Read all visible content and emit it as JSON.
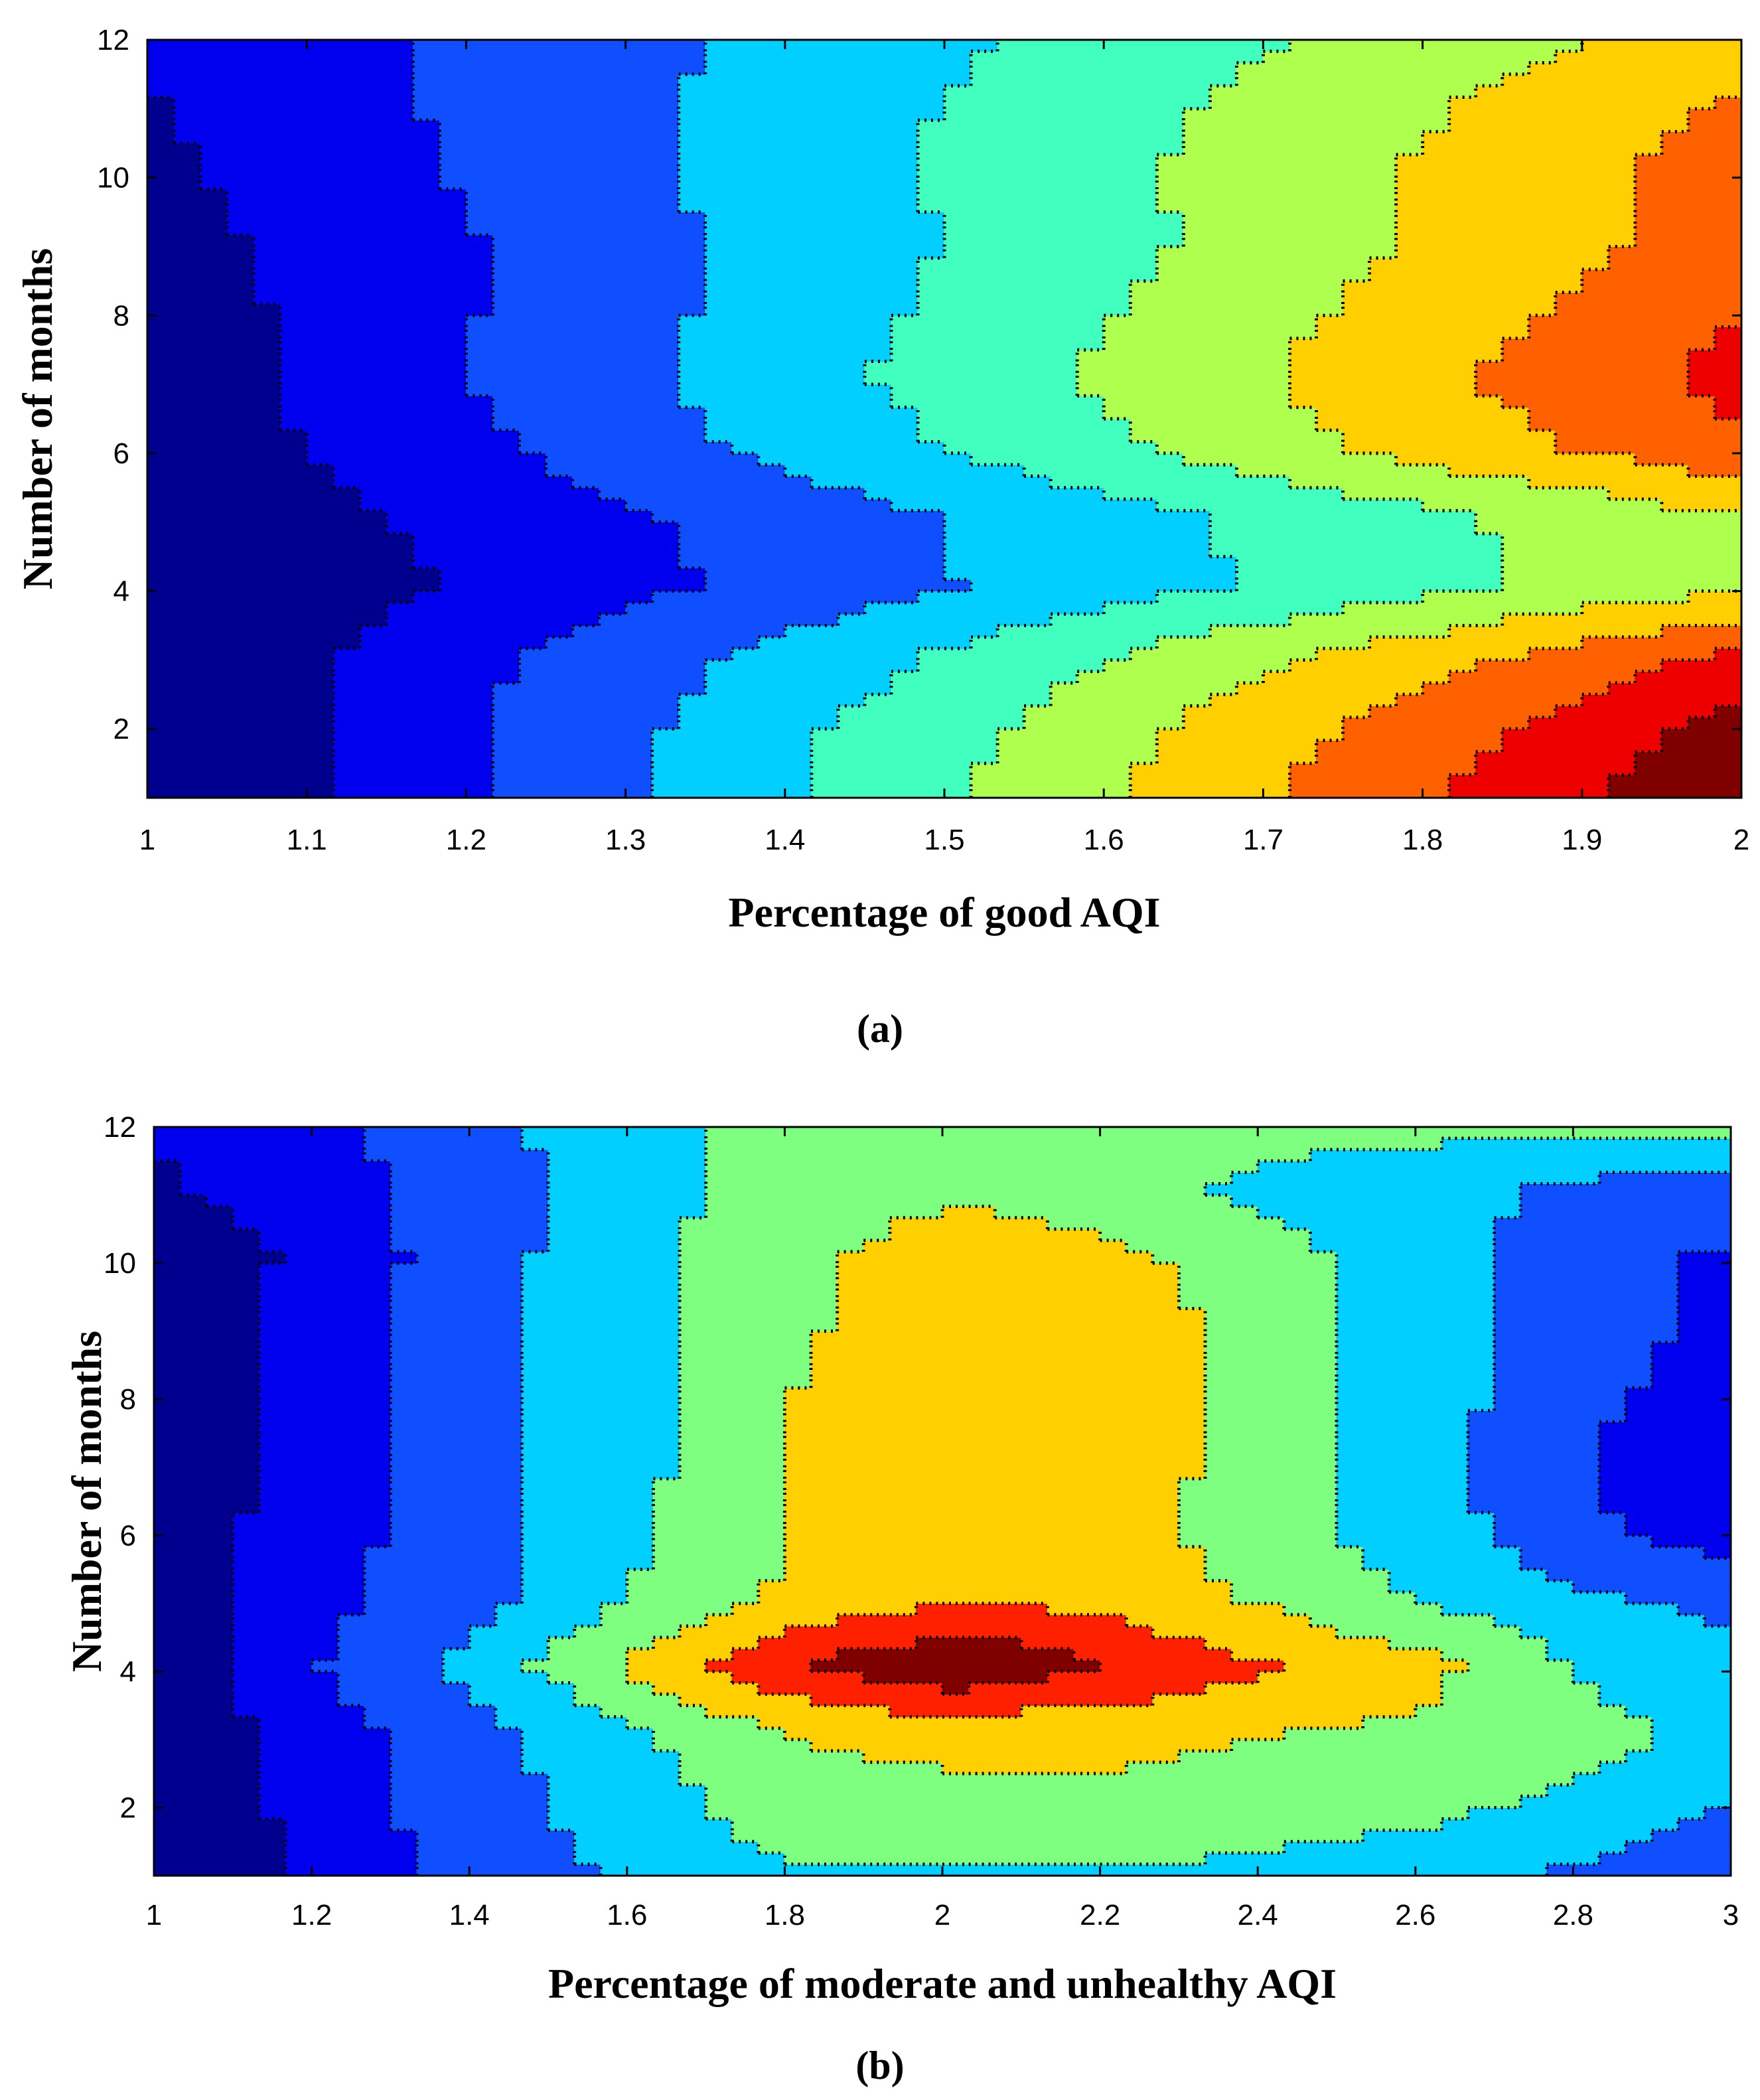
{
  "chart_data": [
    {
      "type": "contour",
      "caption": "(a)",
      "xlabel": "Percentage of good AQI",
      "ylabel": "Number of months",
      "xlim": [
        1,
        2
      ],
      "ylim": [
        1,
        12
      ],
      "xticks": [
        1,
        1.1,
        1.2,
        1.3,
        1.4,
        1.5,
        1.6,
        1.7,
        1.8,
        1.9,
        2
      ],
      "yticks": [
        2,
        4,
        6,
        8,
        10,
        12
      ],
      "colormap": [
        "#00008F",
        "#0000EF",
        "#0F4FFF",
        "#00CFFF",
        "#40FFBF",
        "#AFFF4F",
        "#FFCF00",
        "#FF6000",
        "#EF0000",
        "#800000"
      ],
      "grid": {
        "x": [
          1,
          1.1,
          1.2,
          1.3,
          1.4,
          1.5,
          1.6,
          1.7,
          1.8,
          1.9,
          2
        ],
        "y": [
          1,
          2,
          3,
          4,
          5,
          6,
          7,
          8,
          9,
          10,
          11,
          12
        ],
        "z": [
          [
            0.0,
            1.2,
            2.4,
            3.6,
            4.8,
            6.0,
            7.2,
            8.4,
            9.6,
            10.8,
            12.0
          ],
          [
            0.2,
            1.2,
            2.4,
            3.4,
            4.6,
            5.6,
            6.8,
            7.9,
            9.0,
            10.1,
            11.3
          ],
          [
            0.2,
            1.1,
            2.1,
            3.1,
            4.0,
            5.0,
            6.0,
            7.0,
            7.9,
            8.9,
            9.9
          ],
          [
            0.0,
            0.7,
            1.4,
            2.1,
            2.9,
            3.6,
            4.3,
            5.0,
            5.7,
            6.4,
            7.1
          ],
          [
            0.2,
            0.9,
            1.6,
            2.3,
            3.0,
            3.7,
            4.4,
            5.1,
            5.8,
            6.5,
            7.2
          ],
          [
            0.4,
            1.3,
            2.2,
            3.1,
            4.0,
            4.9,
            5.8,
            6.8,
            7.7,
            8.6,
            9.5
          ],
          [
            0.6,
            1.5,
            2.5,
            3.4,
            4.4,
            5.3,
            6.3,
            7.2,
            8.2,
            9.1,
            10.1
          ],
          [
            0.6,
            1.5,
            2.4,
            3.3,
            4.2,
            5.1,
            6.0,
            6.9,
            7.8,
            8.7,
            9.6
          ],
          [
            0.8,
            1.6,
            2.4,
            3.3,
            4.1,
            4.9,
            5.7,
            6.5,
            7.4,
            8.2,
            9.0
          ],
          [
            1.0,
            1.8,
            2.6,
            3.4,
            4.2,
            5.0,
            5.8,
            6.6,
            7.4,
            8.2,
            9.0
          ],
          [
            1.2,
            1.9,
            2.7,
            3.4,
            4.2,
            4.9,
            5.6,
            6.4,
            7.1,
            7.9,
            8.6
          ],
          [
            1.4,
            2.0,
            2.7,
            3.3,
            4.0,
            4.6,
            5.2,
            5.9,
            6.5,
            7.2,
            7.8
          ]
        ]
      }
    },
    {
      "type": "contour",
      "caption": "(b)",
      "xlabel": "Percentage of moderate and unhealthy AQI",
      "ylabel": "Number of months",
      "xlim": [
        1,
        3
      ],
      "ylim": [
        1,
        12
      ],
      "xticks": [
        1,
        1.2,
        1.4,
        1.6,
        1.8,
        2,
        2.2,
        2.4,
        2.6,
        2.8,
        3
      ],
      "yticks": [
        2,
        4,
        6,
        8,
        10,
        12
      ],
      "colormap": [
        "#00008F",
        "#0000EF",
        "#0F4FFF",
        "#00CFFF",
        "#7FFF7F",
        "#FFCF00",
        "#FF2000",
        "#800000"
      ],
      "grid": {
        "x": [
          1,
          1.2,
          1.4,
          1.6,
          1.8,
          2,
          2.2,
          2.4,
          2.6,
          2.8,
          3
        ],
        "y": [
          1,
          2,
          3,
          4,
          5,
          6,
          7,
          8,
          9,
          10,
          11,
          12
        ],
        "z": [
          [
            0.2,
            1.4,
            2.4,
            3.0,
            3.7,
            3.7,
            3.7,
            3.5,
            3.2,
            2.7,
            2.0
          ],
          [
            0.3,
            1.5,
            2.5,
            3.3,
            4.3,
            4.4,
            4.4,
            4.2,
            4.0,
            3.5,
            2.8
          ],
          [
            0.4,
            1.6,
            2.6,
            3.6,
            4.6,
            4.8,
            4.8,
            4.6,
            4.4,
            4.0,
            3.4
          ],
          [
            0.6,
            2.0,
            3.2,
            4.8,
            6.3,
            7.2,
            6.3,
            5.5,
            4.8,
            3.6,
            3.0
          ],
          [
            0.6,
            1.7,
            2.6,
            3.8,
            4.8,
            5.3,
            5.1,
            4.4,
            3.6,
            2.9,
            2.6
          ],
          [
            0.6,
            1.6,
            2.6,
            3.6,
            4.6,
            5.2,
            5.0,
            4.0,
            3.2,
            2.1,
            1.4
          ],
          [
            0.5,
            1.5,
            2.5,
            3.5,
            4.6,
            5.4,
            5.2,
            4.0,
            3.2,
            2.0,
            1.2
          ],
          [
            0.5,
            1.5,
            2.5,
            3.5,
            4.6,
            5.4,
            5.3,
            4.2,
            3.2,
            2.1,
            1.6
          ],
          [
            0.4,
            1.5,
            2.5,
            3.5,
            4.4,
            5.3,
            5.1,
            4.2,
            3.2,
            2.2,
            1.8
          ],
          [
            0.4,
            1.4,
            2.5,
            3.5,
            4.3,
            5.2,
            4.8,
            4.0,
            3.2,
            2.2,
            1.8
          ],
          [
            1.0,
            1.6,
            2.4,
            3.5,
            4.0,
            4.4,
            4.0,
            3.5,
            3.2,
            2.6,
            2.5
          ],
          [
            1.2,
            1.8,
            2.6,
            3.4,
            4.0,
            4.2,
            4.2,
            4.0,
            4.0,
            4.0,
            4.0
          ]
        ]
      }
    }
  ]
}
